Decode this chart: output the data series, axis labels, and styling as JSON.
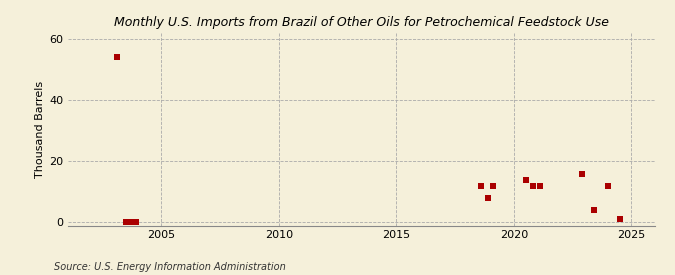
{
  "title": "Monthly U.S. Imports from Brazil of Other Oils for Petrochemical Feedstock Use",
  "ylabel": "Thousand Barrels",
  "source": "Source: U.S. Energy Information Administration",
  "background_color": "#f5f0da",
  "plot_background_color": "#f5f0da",
  "marker_color": "#aa0000",
  "marker_size": 18,
  "xlim": [
    2001,
    2026
  ],
  "ylim": [
    -1,
    62
  ],
  "yticks": [
    0,
    20,
    40,
    60
  ],
  "xticks": [
    2005,
    2010,
    2015,
    2020,
    2025
  ],
  "data_points": [
    [
      2003.1,
      54.0
    ],
    [
      2003.5,
      0.3
    ],
    [
      2003.7,
      0.3
    ],
    [
      2003.9,
      0.3
    ],
    [
      2018.6,
      12.0
    ],
    [
      2018.9,
      8.0
    ],
    [
      2019.1,
      12.0
    ],
    [
      2020.5,
      14.0
    ],
    [
      2020.8,
      12.0
    ],
    [
      2021.1,
      12.0
    ],
    [
      2022.9,
      16.0
    ],
    [
      2023.4,
      4.0
    ],
    [
      2024.0,
      12.0
    ],
    [
      2024.5,
      1.0
    ]
  ]
}
